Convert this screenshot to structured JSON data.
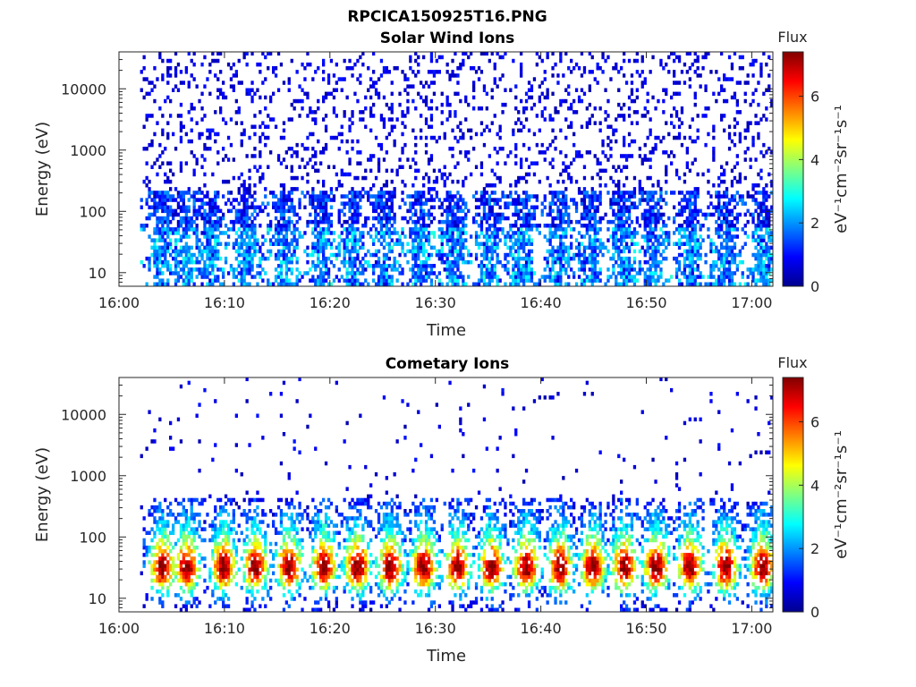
{
  "figure": {
    "title": "RPCICA150925T16.PNG"
  },
  "chart_data": [
    {
      "type": "heatmap",
      "title": "Solar Wind Ions",
      "xlabel": "Time",
      "ylabel": "Energy (eV)",
      "x_range": [
        "16:00",
        "17:02"
      ],
      "x_ticks": [
        "16:00",
        "16:10",
        "16:20",
        "16:30",
        "16:40",
        "16:50",
        "17:00"
      ],
      "y_scale": "log",
      "y_range": [
        6,
        40000
      ],
      "y_ticks": [
        "10",
        "100",
        "1000",
        "10000"
      ],
      "colorbar": {
        "title": "Flux",
        "label": "eV⁻¹cm⁻²sr⁻¹s⁻¹",
        "range": [
          0,
          7.4
        ],
        "ticks": [
          "0",
          "2",
          "4",
          "6"
        ],
        "colormap": "jet"
      },
      "time_start_min": 2,
      "time_end_min": 62,
      "bursts_min": [
        4,
        6,
        8.5,
        12,
        15.5,
        19,
        22,
        25,
        28.5,
        31.5,
        35,
        38,
        41.5,
        44.5,
        47.5,
        50.5,
        54,
        57.5,
        61
      ],
      "low_energy_flux_typical": [
        1,
        3
      ],
      "scattered_flux_typical": [
        0.3,
        1
      ],
      "grid": false,
      "colors": {
        "low": "#00008f",
        "mid": "#80ff80",
        "high": "#800000"
      }
    },
    {
      "type": "heatmap",
      "title": "Cometary Ions",
      "xlabel": "Time",
      "ylabel": "Energy (eV)",
      "x_range": [
        "16:00",
        "17:02"
      ],
      "x_ticks": [
        "16:00",
        "16:10",
        "16:20",
        "16:30",
        "16:40",
        "16:50",
        "17:00"
      ],
      "y_scale": "log",
      "y_range": [
        6,
        40000
      ],
      "y_ticks": [
        "10",
        "100",
        "1000",
        "10000"
      ],
      "colorbar": {
        "title": "Flux",
        "label": "eV⁻¹cm⁻²sr⁻¹s⁻¹",
        "range": [
          0,
          7.4
        ],
        "ticks": [
          "0",
          "2",
          "4",
          "6"
        ],
        "colormap": "jet"
      },
      "time_start_min": 2,
      "time_end_min": 62,
      "bursts_min": [
        4,
        6.3,
        9.8,
        12.8,
        16,
        19.3,
        22.5,
        25.6,
        28.8,
        32,
        35.2,
        38.5,
        41.7,
        44.8,
        47.8,
        50.8,
        54,
        57.4,
        60.9
      ],
      "peak_energy_ev": [
        15,
        45
      ],
      "peak_flux": [
        6,
        6.8
      ],
      "grid": false,
      "colors": {
        "low": "#00008f",
        "mid": "#80ff80",
        "high": "#800000"
      }
    }
  ]
}
